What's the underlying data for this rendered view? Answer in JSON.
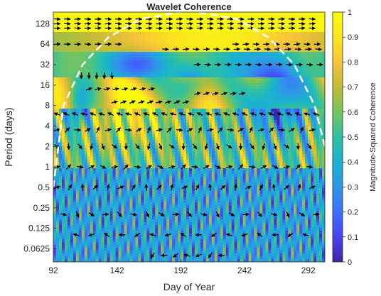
{
  "chart_data": {
    "type": "heatmap",
    "title": "Wavelet Coherence",
    "xlabel": "Day of Year",
    "ylabel": "Period (days)",
    "colorbar_label": "Magnitude-Squared Coherence",
    "x_ticks": [
      "92",
      "142",
      "192",
      "242",
      "292"
    ],
    "x_tick_values": [
      92,
      142,
      192,
      242,
      292
    ],
    "xlim": [
      92,
      305
    ],
    "y_ticks": [
      "128",
      "64",
      "32",
      "16",
      "8",
      "4",
      "2",
      "1",
      "0.5",
      "0.25",
      "0.125",
      "0.0625"
    ],
    "y_tick_values": [
      128,
      64,
      32,
      16,
      8,
      4,
      2,
      1,
      0.5,
      0.25,
      0.125,
      0.0625
    ],
    "ylim": [
      0.04,
      190
    ],
    "y_scale": "log2",
    "y_reversed": true,
    "colorbar_ticks": [
      "0",
      "0.1",
      "0.2",
      "0.3",
      "0.4",
      "0.5",
      "0.6",
      "0.7",
      "0.8",
      "0.9",
      "1"
    ],
    "colorbar_range": [
      0,
      1
    ],
    "colormap": [
      "#3e26a8",
      "#4743f0",
      "#3c70fc",
      "#2f97e6",
      "#1ab2d1",
      "#2fc0a0",
      "#74c45f",
      "#c1bc35",
      "#f8c33a",
      "#fae61d",
      "#f9fb0e"
    ],
    "cone_of_influence": {
      "style": "white dashed",
      "x": [
        92,
        100,
        115,
        135,
        160,
        198,
        236,
        261,
        281,
        297,
        305
      ],
      "period": [
        0.5,
        8,
        32,
        80,
        150,
        200,
        150,
        80,
        32,
        8,
        2
      ]
    },
    "phase_arrows": "black"
  }
}
